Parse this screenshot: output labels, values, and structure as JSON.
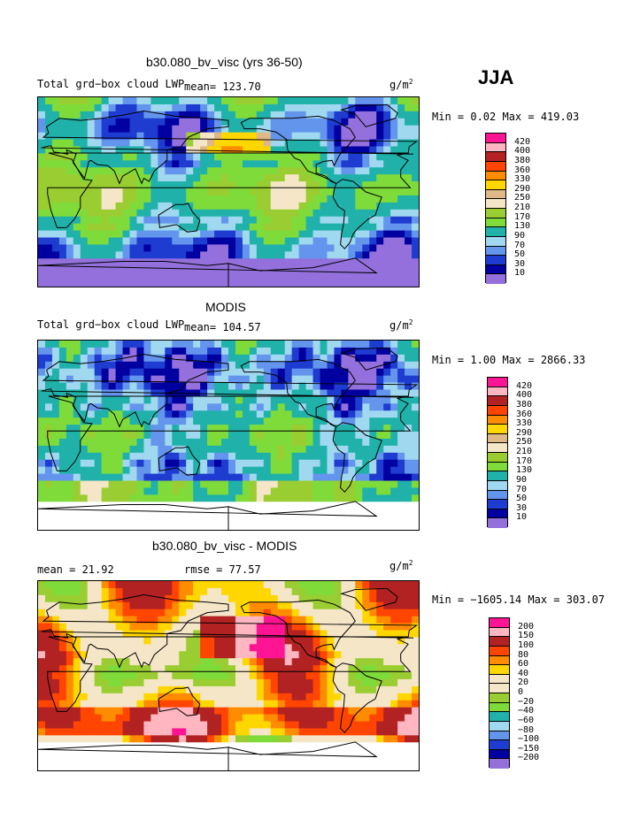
{
  "season": "JJA",
  "units_base": "g/m",
  "units_exp": "2",
  "panels": [
    {
      "title": "b30.080_bv_visc (yrs 36-50)",
      "left_text": "Total grd−box cloud LWP",
      "mean_text": "mean= 123.70",
      "rmse_text": "",
      "minmax_text": "Min =   0.02 Max = 419.03",
      "levels": [
        "420",
        "400",
        "380",
        "360",
        "330",
        "290",
        "250",
        "210",
        "170",
        "130",
        "90",
        "70",
        "50",
        "30",
        "10"
      ],
      "colors": [
        "#ff1493",
        "#ffb6c1",
        "#b22222",
        "#ff4500",
        "#ff8c00",
        "#ffd700",
        "#deb887",
        "#f5e6c8",
        "#9acd32",
        "#7fdb3a",
        "#20b2aa",
        "#a0d8ef",
        "#6495ed",
        "#1e3cd0",
        "#0000a0",
        "#9370db"
      ]
    },
    {
      "title": "MODIS",
      "left_text": "Total grd−box cloud LWP",
      "mean_text": "mean= 104.57",
      "rmse_text": "",
      "minmax_text": "Min =   1.00 Max = 2866.33",
      "levels": [
        "420",
        "400",
        "380",
        "360",
        "330",
        "290",
        "250",
        "210",
        "170",
        "130",
        "90",
        "70",
        "50",
        "30",
        "10"
      ],
      "colors": [
        "#ff1493",
        "#ffb6c1",
        "#b22222",
        "#ff4500",
        "#ff8c00",
        "#ffd700",
        "#deb887",
        "#f5e6c8",
        "#9acd32",
        "#7fdb3a",
        "#20b2aa",
        "#a0d8ef",
        "#6495ed",
        "#1e3cd0",
        "#0000a0",
        "#9370db"
      ]
    },
    {
      "title": "b30.080_bv_visc - MODIS",
      "left_text": "",
      "mean_text": "mean =   21.92",
      "rmse_text": "rmse =   77.57",
      "minmax_text": "Min = −1605.14 Max = 303.07",
      "levels": [
        "200",
        "150",
        "100",
        "80",
        "60",
        "40",
        "20",
        "0",
        "−20",
        "−40",
        "−60",
        "−80",
        "−100",
        "−150",
        "−200"
      ],
      "colors": [
        "#ff1493",
        "#ffb6c1",
        "#b22222",
        "#ff4500",
        "#ff8c00",
        "#ffd700",
        "#f5e6c8",
        "#f5e6c8",
        "#9acd32",
        "#7fdb3a",
        "#20b2aa",
        "#a0d8ef",
        "#6495ed",
        "#1e3cd0",
        "#0000a0",
        "#9370db"
      ]
    }
  ]
}
